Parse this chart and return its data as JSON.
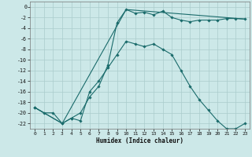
{
  "xlabel": "Humidex (Indice chaleur)",
  "background_color": "#cce8e8",
  "grid_color": "#aacccc",
  "line_color": "#1a6b6b",
  "xlim": [
    -0.5,
    23.5
  ],
  "ylim": [
    -23,
    1
  ],
  "xticks": [
    0,
    1,
    2,
    3,
    4,
    5,
    6,
    7,
    8,
    9,
    10,
    11,
    12,
    13,
    14,
    15,
    16,
    17,
    18,
    19,
    20,
    21,
    22,
    23
  ],
  "yticks": [
    0,
    -2,
    -4,
    -6,
    -8,
    -10,
    -12,
    -14,
    -16,
    -18,
    -20,
    -22
  ],
  "series1_x": [
    0,
    1,
    2,
    3,
    4,
    5,
    6,
    7,
    8,
    9,
    10,
    11,
    12,
    13,
    14,
    15,
    16,
    17,
    18,
    19,
    20,
    21,
    22,
    23
  ],
  "series1_y": [
    -19,
    -20,
    -20,
    -22,
    -21,
    -20,
    -17,
    -15,
    -11,
    -3,
    -0.5,
    -1.2,
    -1.0,
    -1.5,
    -0.8,
    -2.0,
    -2.5,
    -2.8,
    -2.5,
    -2.5,
    -2.5,
    -2.2,
    -2.2,
    -2.3
  ],
  "series2_x": [
    0,
    3,
    4,
    5,
    6,
    7,
    8,
    9,
    10,
    11,
    12,
    13,
    14,
    15,
    16,
    17,
    18,
    19,
    20,
    21,
    22,
    23
  ],
  "series2_y": [
    -19,
    -22,
    -21,
    -21.5,
    -16,
    -14,
    -11.5,
    -9,
    -6.5,
    -7,
    -7.5,
    -7,
    -8,
    -9,
    -12,
    -15,
    -17.5,
    -19.5,
    -21.5,
    -23,
    -23,
    -22
  ],
  "series3_x": [
    0,
    3,
    10,
    23
  ],
  "series3_y": [
    -19,
    -22,
    -0.5,
    -2.3
  ]
}
